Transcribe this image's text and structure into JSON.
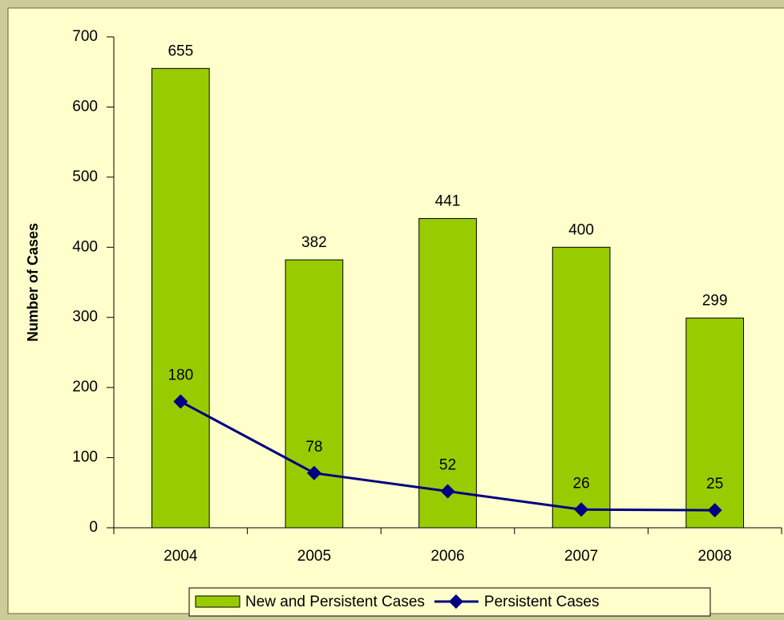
{
  "chart_data": {
    "type": "combo",
    "y_label": "Number of Cases",
    "categories": [
      "2004",
      "2005",
      "2006",
      "2007",
      "2008"
    ],
    "series": [
      {
        "name": "New and Persistent Cases",
        "type": "bar",
        "color": "#99cc00",
        "values": [
          655,
          382,
          441,
          400,
          299
        ]
      },
      {
        "name": "Persistent Cases",
        "type": "line",
        "color": "#000080",
        "values": [
          180,
          78,
          52,
          26,
          25
        ]
      }
    ],
    "ylim": [
      0,
      700
    ],
    "yticks": [
      0,
      100,
      200,
      300,
      400,
      500,
      600,
      700
    ]
  }
}
